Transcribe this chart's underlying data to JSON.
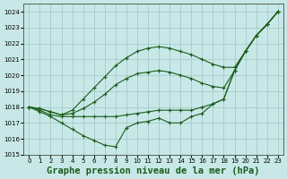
{
  "background_color": "#c8e8e8",
  "grid_color": "#a0c4c4",
  "line_color": "#1a5c1a",
  "marker_color": "#1a5c1a",
  "title": "Graphe pression niveau de la mer (hPa)",
  "xlabel_fontsize": 7.5,
  "ylim": [
    1015,
    1024.5
  ],
  "xlim": [
    -0.5,
    23.5
  ],
  "yticks": [
    1015,
    1016,
    1017,
    1018,
    1019,
    1020,
    1021,
    1022,
    1023,
    1024
  ],
  "xticks": [
    0,
    1,
    2,
    3,
    4,
    5,
    6,
    7,
    8,
    9,
    10,
    11,
    12,
    13,
    14,
    15,
    16,
    17,
    18,
    19,
    20,
    21,
    22,
    23
  ],
  "series": [
    {
      "x": [
        0,
        1,
        2,
        3,
        4,
        5,
        6,
        7,
        8,
        9,
        10,
        11,
        12,
        13,
        14,
        15,
        16,
        17,
        18,
        19,
        20,
        21,
        22,
        23
      ],
      "y": [
        1018.0,
        1017.7,
        1017.4,
        1017.0,
        1016.6,
        1016.2,
        1015.9,
        1015.6,
        1015.5,
        1016.7,
        1017.0,
        1017.1,
        1017.3,
        1017.0,
        1017.0,
        1017.4,
        1017.6,
        1018.2,
        1018.5,
        1020.3,
        1021.5,
        1022.5,
        1023.2,
        1024.0
      ],
      "has_marker": true
    },
    {
      "x": [
        0,
        1,
        2,
        3,
        4,
        5,
        6,
        7,
        8,
        9,
        10,
        11,
        12,
        13,
        14,
        15,
        16,
        17,
        18,
        19,
        20,
        21,
        22,
        23
      ],
      "y": [
        1018.0,
        1017.8,
        1017.5,
        1017.4,
        1017.4,
        1017.4,
        1017.4,
        1017.4,
        1017.4,
        1017.5,
        1017.6,
        1017.7,
        1017.8,
        1017.8,
        1017.8,
        1017.8,
        1018.0,
        1018.2,
        1018.5,
        1020.3,
        1021.5,
        1022.5,
        1023.2,
        1024.0
      ],
      "has_marker": true
    },
    {
      "x": [
        0,
        1,
        2,
        3,
        4,
        5,
        6,
        7,
        8,
        9,
        10,
        11,
        12,
        13,
        14,
        15,
        16,
        17,
        18,
        19,
        20,
        21,
        22,
        23
      ],
      "y": [
        1018.0,
        1017.9,
        1017.7,
        1017.5,
        1017.6,
        1017.9,
        1018.3,
        1018.8,
        1019.4,
        1019.8,
        1020.1,
        1020.2,
        1020.3,
        1020.2,
        1020.0,
        1019.8,
        1019.5,
        1019.3,
        1019.2,
        1020.3,
        1021.5,
        1022.5,
        1023.2,
        1024.0
      ],
      "has_marker": true
    },
    {
      "x": [
        0,
        1,
        2,
        3,
        4,
        5,
        6,
        7,
        8,
        9,
        10,
        11,
        12,
        13,
        14,
        15,
        16,
        17,
        18,
        19,
        20,
        21,
        22,
        23
      ],
      "y": [
        1018.0,
        1017.9,
        1017.7,
        1017.5,
        1017.8,
        1018.5,
        1019.2,
        1019.9,
        1020.6,
        1021.1,
        1021.5,
        1021.7,
        1021.8,
        1021.7,
        1021.5,
        1021.3,
        1021.0,
        1020.7,
        1020.5,
        1020.5,
        1021.5,
        1022.5,
        1023.2,
        1024.0
      ],
      "has_marker": true
    }
  ]
}
